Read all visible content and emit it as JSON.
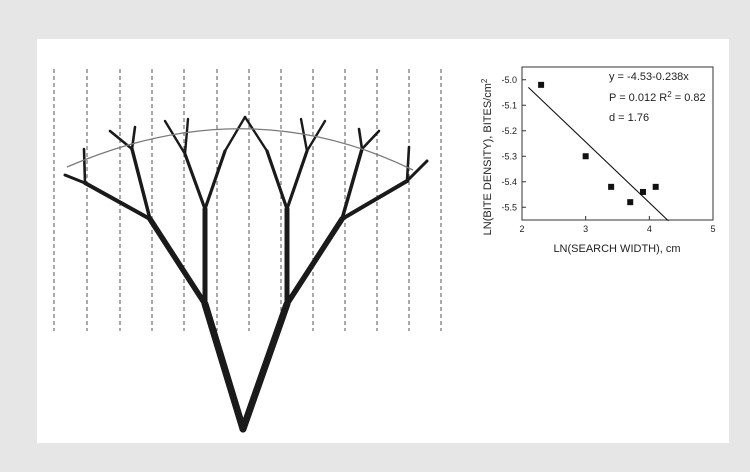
{
  "chart_data": {
    "type": "scatter",
    "xlabel": "LN(SEARCH WIDTH), cm",
    "ylabel_main": "LN(BITE DENSITY), BITES/cm",
    "ylabel_sup": "2",
    "xlim": [
      2,
      5
    ],
    "ylim": [
      -5.55,
      -4.95
    ],
    "xticks": [
      "2",
      "3",
      "4",
      "5"
    ],
    "yticks": [
      "-5.0",
      "-5.1",
      "-5.2",
      "-5.3",
      "-5.4",
      "-5.5"
    ],
    "points": [
      {
        "x": 2.3,
        "y": -5.02
      },
      {
        "x": 3.0,
        "y": -5.3
      },
      {
        "x": 3.4,
        "y": -5.42
      },
      {
        "x": 3.7,
        "y": -5.48
      },
      {
        "x": 3.9,
        "y": -5.44
      },
      {
        "x": 4.1,
        "y": -5.42
      }
    ],
    "fit": {
      "intercept": -4.53,
      "slope": -0.238
    },
    "equation": "y = -4.53-0.238x",
    "p_text": "P = 0.012 R",
    "r2_sup": "2",
    "r2_val": " = 0.82",
    "d_text": "d = 1.76",
    "grid": false,
    "legend": "none"
  },
  "diagram": {
    "tree": "branching-tree-diagram",
    "search_lines": "dashed-search-width-lines",
    "search_arc": "search-arc"
  }
}
